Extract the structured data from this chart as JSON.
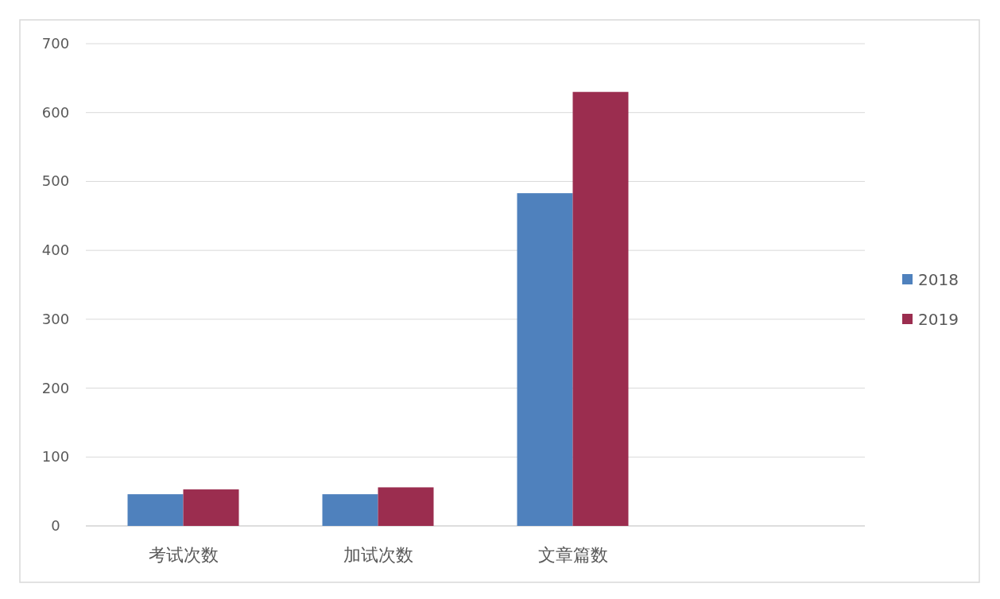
{
  "chart_data": {
    "type": "bar",
    "categories": [
      "考试次数",
      "加试次数",
      "文章篇数",
      null
    ],
    "series": [
      {
        "name": "2018",
        "color": "#4f81bd",
        "values": [
          46,
          46,
          483,
          null
        ]
      },
      {
        "name": "2019",
        "color": "#9b2d4f",
        "values": [
          53,
          56,
          630,
          null
        ]
      }
    ],
    "ylim": [
      0,
      700
    ],
    "yticks": [
      0,
      100,
      200,
      300,
      400,
      500,
      600,
      700
    ],
    "grid": "y",
    "legend": "right"
  }
}
